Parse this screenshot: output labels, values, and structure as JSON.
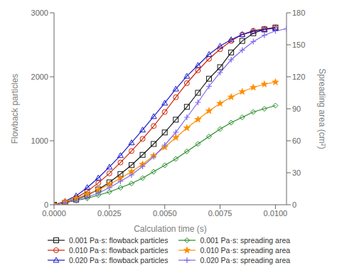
{
  "chart_data": {
    "type": "line",
    "xlabel": "Calculation time (s)",
    "ylabel": "Flowback particles",
    "y2label": "Spreading area (cm²)",
    "xlim": [
      0.0,
      0.0105
    ],
    "xticks": [
      {
        "value": 0,
        "label": "0.0000"
      },
      0.0025,
      {
        "value": 0.005,
        "label": "0.0050"
      },
      0.0075,
      {
        "value": 0.01,
        "label": "0.0100"
      }
    ],
    "ylim": [
      0,
      3000
    ],
    "yticks": [
      0,
      1000,
      2000,
      3000
    ],
    "y2lim": [
      0,
      180
    ],
    "y2ticks": [
      0,
      30,
      60,
      90,
      120,
      150,
      180
    ],
    "grid": false,
    "legend": "bottom",
    "series": [
      {
        "name": "0.001 Pa·s: flowback particles",
        "color": "#1a1a1a",
        "marker": "square",
        "axis": "y",
        "x": [
          0.0,
          0.0005,
          0.001,
          0.0015,
          0.002,
          0.0025,
          0.003,
          0.0035,
          0.004,
          0.0045,
          0.005,
          0.0055,
          0.006,
          0.0065,
          0.007,
          0.0075,
          0.008,
          0.0085,
          0.009,
          0.0095,
          0.01
        ],
        "values": [
          0,
          30,
          80,
          150,
          240,
          350,
          480,
          620,
          780,
          950,
          1130,
          1330,
          1530,
          1750,
          1970,
          2150,
          2380,
          2560,
          2680,
          2740,
          2770
        ]
      },
      {
        "name": "0.010 Pa·s: flowback particles",
        "color": "#cc2200",
        "marker": "circle",
        "axis": "y",
        "x": [
          0.0,
          0.0005,
          0.001,
          0.0015,
          0.002,
          0.0025,
          0.003,
          0.0035,
          0.004,
          0.0045,
          0.005,
          0.0055,
          0.006,
          0.0065,
          0.007,
          0.0075,
          0.008,
          0.0085,
          0.009,
          0.0095,
          0.01
        ],
        "values": [
          0,
          40,
          110,
          210,
          340,
          490,
          660,
          840,
          1030,
          1230,
          1450,
          1680,
          1900,
          2100,
          2280,
          2430,
          2560,
          2660,
          2720,
          2750,
          2770
        ]
      },
      {
        "name": "0.020 Pa·s: flowback particles",
        "color": "#1a1acc",
        "marker": "triangle",
        "axis": "y",
        "x": [
          0.0,
          0.0005,
          0.001,
          0.0015,
          0.002,
          0.0025,
          0.003,
          0.0035,
          0.004,
          0.0045,
          0.005,
          0.0055,
          0.006,
          0.0065,
          0.007,
          0.0075,
          0.008,
          0.0085,
          0.009,
          0.0095,
          0.01
        ],
        "values": [
          0,
          55,
          140,
          270,
          420,
          590,
          770,
          970,
          1170,
          1380,
          1590,
          1810,
          2010,
          2180,
          2350,
          2480,
          2580,
          2660,
          2710,
          2740,
          2760
        ]
      },
      {
        "name": "0.001 Pa·s: spreading area",
        "color": "#228B22",
        "marker": "diamond",
        "axis": "y2",
        "x": [
          0.0,
          0.0005,
          0.001,
          0.0015,
          0.002,
          0.0025,
          0.003,
          0.0035,
          0.004,
          0.0045,
          0.005,
          0.0055,
          0.006,
          0.0065,
          0.007,
          0.0075,
          0.008,
          0.0085,
          0.009,
          0.0095,
          0.01
        ],
        "values": [
          0,
          2,
          4,
          6,
          9,
          12,
          16,
          20,
          25,
          31,
          37,
          43,
          50,
          57,
          64,
          71,
          77,
          82,
          87,
          90,
          93
        ]
      },
      {
        "name": "0.010 Pa·s: spreading area",
        "color": "#FF8C00",
        "marker": "star",
        "axis": "y2",
        "x": [
          0.0,
          0.0005,
          0.001,
          0.0015,
          0.002,
          0.0025,
          0.003,
          0.0035,
          0.004,
          0.0045,
          0.005,
          0.0055,
          0.006,
          0.0065,
          0.007,
          0.0075,
          0.008,
          0.0085,
          0.009,
          0.0095,
          0.01
        ],
        "values": [
          0,
          3,
          6,
          10,
          14,
          19,
          25,
          31,
          38,
          46,
          54,
          63,
          72,
          80,
          88,
          95,
          101,
          106,
          110,
          113,
          115
        ]
      },
      {
        "name": "0.020 Pa·s: spreading area",
        "color": "#7B68EE",
        "marker": "plus",
        "axis": "y2",
        "x": [
          0.0,
          0.0005,
          0.001,
          0.0015,
          0.002,
          0.0025,
          0.003,
          0.0035,
          0.004,
          0.0045,
          0.005,
          0.0055,
          0.006,
          0.0065,
          0.007,
          0.0075,
          0.008,
          0.0085,
          0.009,
          0.0095,
          0.01,
          0.0105
        ],
        "values": [
          0,
          2,
          4,
          7,
          11,
          16,
          22,
          28,
          36,
          45,
          56,
          68,
          82,
          96,
          111,
          124,
          136,
          145,
          153,
          159,
          163,
          165
        ]
      }
    ]
  }
}
